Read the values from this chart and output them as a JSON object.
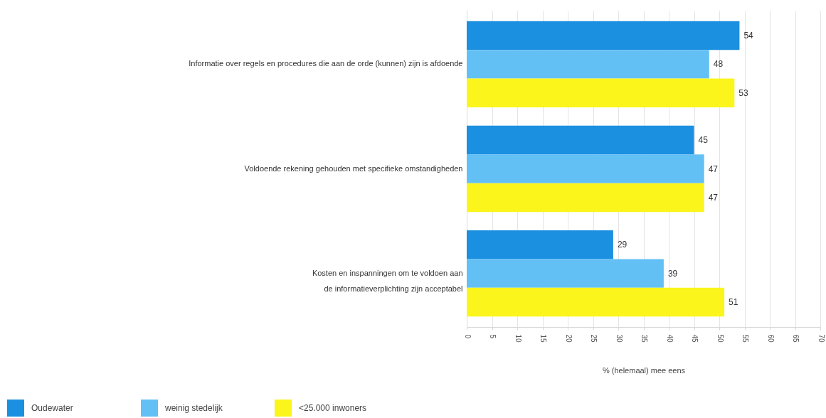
{
  "chart_data": {
    "type": "bar",
    "orientation": "horizontal",
    "categories": [
      "Informatie over regels en procedures die aan de orde (kunnen) zijn is afdoende",
      "Voldoende rekening gehouden met specifieke omstandigheden",
      "Kosten en inspanningen om te voldoen aan de informatieverplichting zijn acceptabel"
    ],
    "series": [
      {
        "name": "Oudewater",
        "color": "#1b8fe0",
        "values": [
          54,
          45,
          29
        ]
      },
      {
        "name": "weinig stedelijk",
        "color": "#63c0f5",
        "values": [
          48,
          47,
          39
        ]
      },
      {
        "name": "<25.000 inwoners",
        "color": "#fbf51c",
        "values": [
          53,
          47,
          51
        ]
      }
    ],
    "xlabel": "% (helemaal) mee eens",
    "xlim": [
      0,
      70
    ],
    "xticks": [
      0,
      5,
      10,
      15,
      20,
      25,
      30,
      35,
      40,
      45,
      50,
      55,
      60,
      65,
      70
    ],
    "grid": "x",
    "legend": "bottom left",
    "data_labels": true
  }
}
